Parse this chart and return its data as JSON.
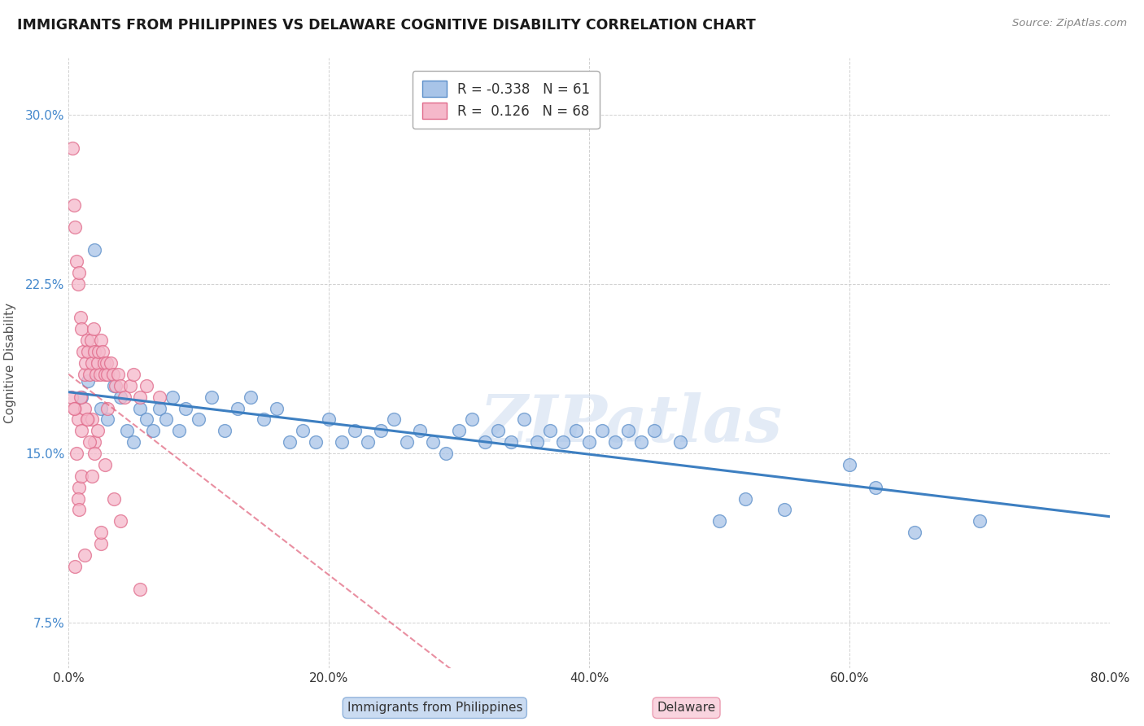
{
  "title": "IMMIGRANTS FROM PHILIPPINES VS DELAWARE COGNITIVE DISABILITY CORRELATION CHART",
  "source_text": "Source: ZipAtlas.com",
  "ylabel": "Cognitive Disability",
  "legend_label_blue": "Immigrants from Philippines",
  "legend_label_pink": "Delaware",
  "R_blue": -0.338,
  "N_blue": 61,
  "R_pink": 0.126,
  "N_pink": 68,
  "xlim": [
    0.0,
    80.0
  ],
  "ylim": [
    5.5,
    32.5
  ],
  "yticks": [
    7.5,
    15.0,
    22.5,
    30.0
  ],
  "xticks": [
    0.0,
    20.0,
    40.0,
    60.0,
    80.0
  ],
  "color_blue": "#a8c4e8",
  "color_pink": "#f5b8ca",
  "edge_blue": "#5b8ec9",
  "edge_pink": "#e06a8a",
  "trendline_blue_color": "#3d7fc1",
  "trendline_pink_color": "#e0607a",
  "scatter_blue_x": [
    1.0,
    1.5,
    2.0,
    2.5,
    3.0,
    3.5,
    4.0,
    4.5,
    5.0,
    5.5,
    6.0,
    6.5,
    7.0,
    7.5,
    8.0,
    8.5,
    9.0,
    10.0,
    11.0,
    12.0,
    13.0,
    14.0,
    15.0,
    16.0,
    17.0,
    18.0,
    19.0,
    20.0,
    21.0,
    22.0,
    23.0,
    24.0,
    25.0,
    26.0,
    27.0,
    28.0,
    29.0,
    30.0,
    31.0,
    32.0,
    33.0,
    34.0,
    35.0,
    36.0,
    37.0,
    38.0,
    39.0,
    40.0,
    41.0,
    42.0,
    43.0,
    44.0,
    45.0,
    47.0,
    50.0,
    52.0,
    55.0,
    60.0,
    62.0,
    65.0,
    70.0
  ],
  "scatter_blue_y": [
    17.5,
    18.2,
    24.0,
    17.0,
    16.5,
    18.0,
    17.5,
    16.0,
    15.5,
    17.0,
    16.5,
    16.0,
    17.0,
    16.5,
    17.5,
    16.0,
    17.0,
    16.5,
    17.5,
    16.0,
    17.0,
    17.5,
    16.5,
    17.0,
    15.5,
    16.0,
    15.5,
    16.5,
    15.5,
    16.0,
    15.5,
    16.0,
    16.5,
    15.5,
    16.0,
    15.5,
    15.0,
    16.0,
    16.5,
    15.5,
    16.0,
    15.5,
    16.5,
    15.5,
    16.0,
    15.5,
    16.0,
    15.5,
    16.0,
    15.5,
    16.0,
    15.5,
    16.0,
    15.5,
    12.0,
    13.0,
    12.5,
    14.5,
    13.5,
    11.5,
    12.0
  ],
  "scatter_pink_x": [
    0.2,
    0.3,
    0.4,
    0.5,
    0.6,
    0.7,
    0.8,
    0.9,
    1.0,
    1.1,
    1.2,
    1.3,
    1.4,
    1.5,
    1.6,
    1.7,
    1.8,
    1.9,
    2.0,
    2.1,
    2.2,
    2.3,
    2.4,
    2.5,
    2.6,
    2.7,
    2.8,
    2.9,
    3.0,
    3.2,
    3.4,
    3.6,
    3.8,
    4.0,
    4.3,
    4.7,
    5.0,
    5.5,
    6.0,
    7.0,
    0.5,
    0.7,
    1.0,
    1.5,
    2.0,
    2.5,
    0.8,
    1.2,
    1.8,
    0.9,
    2.2,
    0.5,
    3.0,
    1.6,
    2.8,
    0.7,
    4.0,
    1.0,
    0.6,
    1.4,
    2.0,
    0.4,
    1.8,
    0.8,
    3.5,
    2.5,
    1.2,
    5.5
  ],
  "scatter_pink_y": [
    17.5,
    28.5,
    26.0,
    25.0,
    23.5,
    22.5,
    23.0,
    21.0,
    20.5,
    19.5,
    18.5,
    19.0,
    20.0,
    19.5,
    18.5,
    20.0,
    19.0,
    20.5,
    19.5,
    18.5,
    19.0,
    19.5,
    18.5,
    20.0,
    19.5,
    19.0,
    18.5,
    19.0,
    18.5,
    19.0,
    18.5,
    18.0,
    18.5,
    18.0,
    17.5,
    18.0,
    18.5,
    17.5,
    18.0,
    17.5,
    17.0,
    16.5,
    16.0,
    16.5,
    15.5,
    11.0,
    13.5,
    17.0,
    16.5,
    17.5,
    16.0,
    10.0,
    17.0,
    15.5,
    14.5,
    13.0,
    12.0,
    14.0,
    15.0,
    16.5,
    15.0,
    17.0,
    14.0,
    12.5,
    13.0,
    11.5,
    10.5,
    9.0
  ],
  "watermark": "ZIPatlas",
  "background_color": "#ffffff",
  "grid_color": "#cccccc"
}
